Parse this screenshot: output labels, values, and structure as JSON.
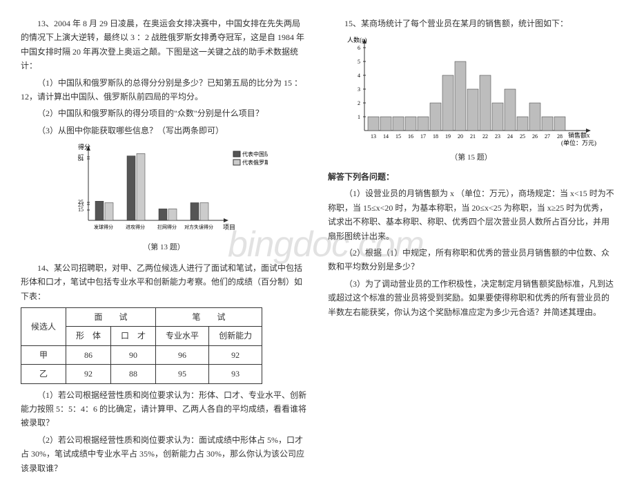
{
  "watermark": "bingdoc.com",
  "q13": {
    "intro": "13、2004 年 8 月 29 日凌晨，在奥运会女排决赛中，中国女排在先失两局的情况下上演大逆转，最终以 3 ：2 战胜俄罗斯女排勇夺冠军，这是自 1984 年中国女排时隔 20 年再次登上奥运之颠。下图是这一关键之战的助手术数据统计：",
    "p1": "（1）中国队和俄罗斯队的总得分分别是多少？已知第五局的比分为 15 ：12，请计算出中国队、俄罗斯队前四局的平均分。",
    "p2": "（2）中国队和俄罗斯队的得分项目的\"众数\"分别是什么项目？",
    "p3": "（3）从图中你能获取哪些信息？（写出两条即可）",
    "chart": {
      "type": "bar",
      "ylabel": "得分",
      "ymax": 90,
      "gridlines": [
        87,
        84,
        25,
        23,
        15
      ],
      "categories": [
        "发球得分",
        "进攻得分",
        "拦网得分",
        "对方失误得分"
      ],
      "xlabel": "项目",
      "series": [
        {
          "name": "代表中国队",
          "color": "#555555",
          "values": [
            25,
            84,
            15,
            23
          ]
        },
        {
          "name": "代表俄罗斯",
          "color": "#cccccc",
          "values": [
            23,
            87,
            15,
            23
          ]
        }
      ],
      "label": "（第 13 题）"
    }
  },
  "q14": {
    "intro": "14、某公司招聘职，对甲、乙两位候选人进行了面试和笔试，面试中包括形体和口才，笔试中包括专业水平和创新能力考察。他们的成绩（百分制）如下表：",
    "table": {
      "head1": [
        "候选人",
        "面　　试",
        "笔　　试"
      ],
      "head2": [
        "形　体",
        "口　才",
        "专业水平",
        "创新能力"
      ],
      "rows": [
        [
          "甲",
          "86",
          "90",
          "96",
          "92"
        ],
        [
          "乙",
          "92",
          "88",
          "95",
          "93"
        ]
      ]
    },
    "p1": "（1）若公司根据经营性质和岗位要求认为：形体、口才、专业水平、创新能力按照 5：5：4：6 的比确定，请计算甲、乙两人各自的平均成绩，看看谁将被录取？",
    "p2": "（2）若公司根据经营性质和岗位要求认为：面试成绩中形体占 5%，口才占 30%，笔试成绩中专业水平占 35%，创新能力占 30%，那么你认为该公司应该录取谁？"
  },
  "q15": {
    "intro": "15、某商场统计了每个营业员在某月的销售额，统计图如下：",
    "chart": {
      "type": "bar",
      "ylabel": "人数(n)",
      "xlabel_line1": "销售额x",
      "xlabel_line2": "(单位：万元)",
      "ymax": 6,
      "categories": [
        "13",
        "14",
        "15",
        "16",
        "17",
        "18",
        "19",
        "20",
        "21",
        "22",
        "23",
        "24",
        "25",
        "26",
        "27",
        "28"
      ],
      "values": [
        1,
        1,
        1,
        1,
        1,
        2,
        4,
        5,
        3,
        4,
        2,
        3,
        1,
        2,
        1,
        1
      ],
      "bar_color": "#bdbdbd",
      "bar_border": "#333333",
      "label": "（第 15 题）"
    },
    "heading": "解答下列各问题：",
    "p1": "（1）设营业员的月销售额为 x （单位：万元），商场规定：当 x<15 时为不称职，当 15≤x<20 时，为基本称职，当 20≤x<25 为称职，当 x≥25 时为优秀，试求出不称职、基本称职、称职、优秀四个层次营业员人数所占百分比，并用扇形图统计出来。",
    "p2": "（2）根据（1）中规定，所有称职和优秀的营业员月销售额的中位数、众数和平均数分别是多少？",
    "p3": "（3）为了调动营业员的工作积极性，决定制定月销售额奖励标准，凡到达或超过这个标准的营业员将受到奖励。如果要使得称职和优秀的所有营业员的半数左右能获奖，你认为这个奖励标准应定为多少元合适？并简述其理由。"
  }
}
